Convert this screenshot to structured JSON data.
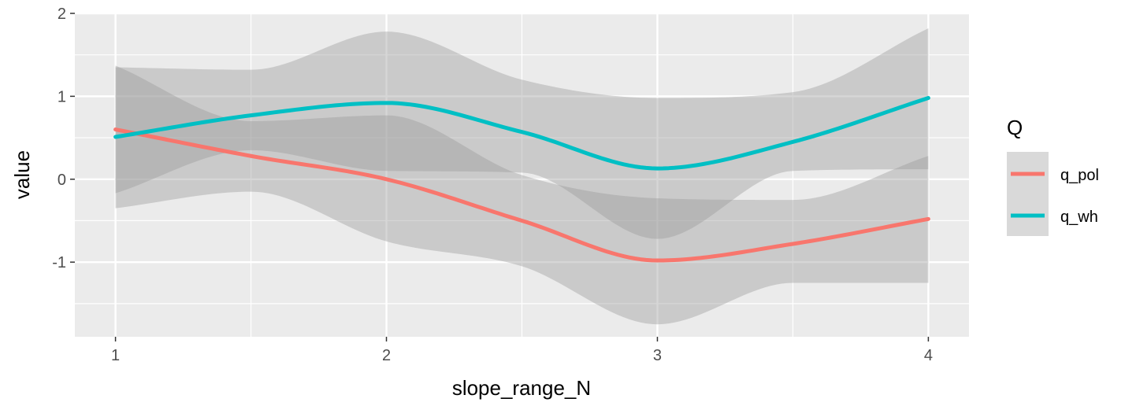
{
  "chart_data": {
    "type": "line",
    "xlabel": "slope_range_N",
    "ylabel": "value",
    "xlim": [
      0.85,
      4.15
    ],
    "ylim": [
      -1.9,
      2.0
    ],
    "x_ticks": [
      1,
      2,
      3,
      4
    ],
    "x_tick_labels": [
      "1",
      "2",
      "3",
      "4"
    ],
    "y_ticks": [
      2,
      1,
      0,
      -1
    ],
    "y_tick_labels": [
      "2",
      "1",
      "0",
      "-1"
    ],
    "grid": true,
    "legend": {
      "title": "Q",
      "position": "right"
    },
    "series": [
      {
        "name": "q_pol",
        "color": "#F8766D",
        "band_color": "#999999",
        "x": [
          1,
          1.5,
          2,
          2.5,
          3,
          3.5,
          4
        ],
        "y": [
          0.6,
          0.28,
          0.0,
          -0.5,
          -0.98,
          -0.78,
          -0.48
        ],
        "lower": [
          -0.35,
          -0.15,
          -0.75,
          -1.05,
          -1.75,
          -1.25,
          -1.25
        ],
        "upper": [
          1.37,
          0.7,
          0.77,
          0.05,
          -0.23,
          -0.25,
          0.28
        ]
      },
      {
        "name": "q_wh",
        "color": "#00BFC4",
        "band_color": "#999999",
        "x": [
          1,
          1.5,
          2,
          2.5,
          3,
          3.5,
          4
        ],
        "y": [
          0.51,
          0.77,
          0.92,
          0.57,
          0.13,
          0.45,
          0.98
        ],
        "lower": [
          -0.17,
          0.35,
          0.1,
          0.08,
          -0.72,
          0.1,
          0.12
        ],
        "upper": [
          1.35,
          1.32,
          1.78,
          1.2,
          0.98,
          1.05,
          1.82
        ]
      }
    ]
  }
}
